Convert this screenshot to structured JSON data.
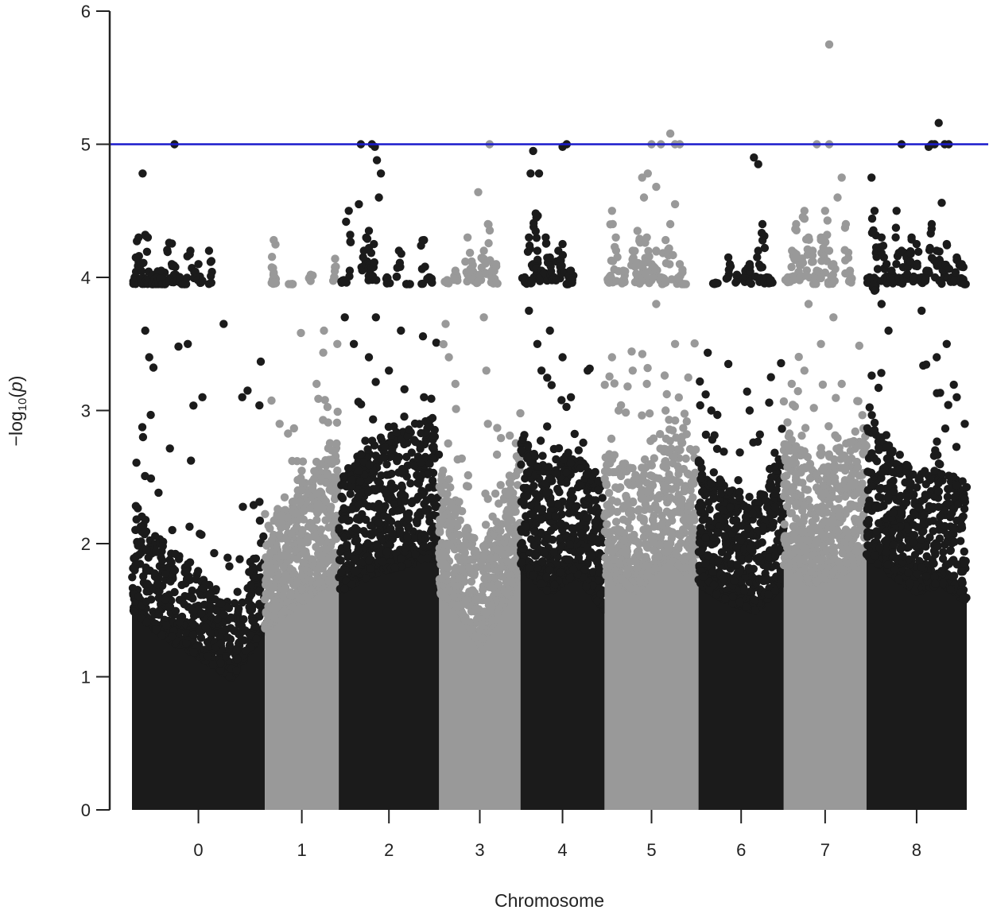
{
  "chart_data": {
    "type": "scatter",
    "subtype": "manhattan",
    "title": "",
    "xlabel": "Chromosome",
    "ylabel": "−log10(p)",
    "ylabel_parts": {
      "prefix": "−log",
      "subscript": "10",
      "open": "(",
      "var": "p",
      "close": ")"
    },
    "ylim": [
      0,
      6
    ],
    "yticks": [
      "0",
      "1",
      "2",
      "3",
      "4",
      "5",
      "6"
    ],
    "yticks_values": [
      0,
      1,
      2,
      3,
      4,
      5,
      6
    ],
    "threshold": {
      "value": 5,
      "color": "#1a1acc"
    },
    "grid": false,
    "legend": "none",
    "colors": {
      "dark": "#1b1b1b",
      "light": "#999999"
    },
    "chromosomes": [
      {
        "label": "0",
        "color": "dark",
        "pos": [
          0,
          1.06
        ],
        "base": [
          2.2,
          1.9,
          1.7,
          1.45,
          2.0
        ],
        "top": [
          [
            0.02,
            4.0
          ],
          [
            0.05,
            4.3
          ],
          [
            0.07,
            4.1
          ],
          [
            0.1,
            4.32
          ],
          [
            0.12,
            3.96
          ],
          [
            0.15,
            4.02
          ],
          [
            0.18,
            3.95
          ],
          [
            0.2,
            4.0
          ],
          [
            0.22,
            4.05
          ],
          [
            0.25,
            3.95
          ],
          [
            0.28,
            4.26
          ],
          [
            0.3,
            4.1
          ],
          [
            0.33,
            4.02
          ],
          [
            0.36,
            4.0
          ],
          [
            0.4,
            3.95
          ],
          [
            0.44,
            4.2
          ],
          [
            0.5,
            4.1
          ],
          [
            0.58,
            4.2
          ],
          [
            0.08,
            4.78
          ],
          [
            0.1,
            3.6
          ],
          [
            0.13,
            3.4
          ],
          [
            0.32,
            5.0
          ],
          [
            0.35,
            3.48
          ],
          [
            0.42,
            3.5
          ],
          [
            0.53,
            3.1
          ],
          [
            0.69,
            3.65
          ],
          [
            0.83,
            3.1
          ],
          [
            0.87,
            3.15
          ]
        ]
      },
      {
        "label": "1",
        "color": "light",
        "pos": [
          1.06,
          1.65
        ],
        "base": [
          2.0,
          2.2,
          2.4,
          2.6
        ],
        "top": [
          [
            0.12,
            4.28
          ],
          [
            0.12,
            4.02
          ],
          [
            0.12,
            3.96
          ],
          [
            0.35,
            3.95
          ],
          [
            0.62,
            4.02
          ],
          [
            0.8,
            3.6
          ],
          [
            0.95,
            4.14
          ],
          [
            0.98,
            3.5
          ],
          [
            0.2,
            2.9
          ],
          [
            0.7,
            3.2
          ]
        ]
      },
      {
        "label": "2",
        "color": "dark",
        "pos": [
          1.65,
          2.45
        ],
        "base": [
          2.4,
          2.6,
          2.7,
          2.8
        ],
        "top": [
          [
            0.05,
            3.98
          ],
          [
            0.1,
            4.5
          ],
          [
            0.2,
            4.55
          ],
          [
            0.25,
            4.2
          ],
          [
            0.3,
            4.35
          ],
          [
            0.32,
            4.1
          ],
          [
            0.35,
            4.25
          ],
          [
            0.38,
            4.88
          ],
          [
            0.4,
            4.6
          ],
          [
            0.42,
            4.78
          ],
          [
            0.22,
            5.0
          ],
          [
            0.33,
            5.0
          ],
          [
            0.36,
            4.98
          ],
          [
            0.48,
            4.0
          ],
          [
            0.6,
            4.2
          ],
          [
            0.7,
            3.95
          ],
          [
            0.85,
            4.28
          ],
          [
            0.9,
            4.0
          ],
          [
            0.06,
            3.7
          ],
          [
            0.15,
            3.5
          ],
          [
            0.3,
            3.4
          ],
          [
            0.37,
            3.7
          ],
          [
            0.5,
            3.3
          ],
          [
            0.62,
            3.6
          ],
          [
            0.85,
            3.1
          ]
        ]
      },
      {
        "label": "3",
        "color": "light",
        "pos": [
          2.45,
          3.1
        ],
        "base": [
          2.4,
          2.2,
          1.8,
          2.2,
          2.6
        ],
        "top": [
          [
            0.1,
            3.98
          ],
          [
            0.2,
            4.05
          ],
          [
            0.35,
            4.3
          ],
          [
            0.4,
            4.12
          ],
          [
            0.45,
            4.0
          ],
          [
            0.5,
            4.02
          ],
          [
            0.55,
            4.2
          ],
          [
            0.6,
            4.4
          ],
          [
            0.65,
            4.05
          ],
          [
            0.7,
            4.1
          ],
          [
            0.48,
            4.64
          ],
          [
            0.62,
            5.0
          ],
          [
            0.08,
            3.65
          ],
          [
            0.12,
            3.4
          ],
          [
            0.55,
            3.7
          ],
          [
            0.58,
            3.3
          ],
          [
            0.6,
            2.9
          ],
          [
            0.2,
            3.2
          ]
        ]
      },
      {
        "label": "4",
        "color": "dark",
        "pos": [
          3.1,
          3.77
        ],
        "base": [
          2.7,
          2.4,
          2.6,
          2.2
        ],
        "top": [
          [
            0.05,
            4.0
          ],
          [
            0.1,
            4.3
          ],
          [
            0.15,
            4.1
          ],
          [
            0.18,
            4.48
          ],
          [
            0.2,
            4.2
          ],
          [
            0.25,
            4.05
          ],
          [
            0.3,
            4.3
          ],
          [
            0.35,
            4.15
          ],
          [
            0.4,
            4.0
          ],
          [
            0.45,
            4.2
          ],
          [
            0.5,
            4.25
          ],
          [
            0.55,
            3.95
          ],
          [
            0.6,
            4.05
          ],
          [
            0.15,
            4.95
          ],
          [
            0.12,
            4.78
          ],
          [
            0.22,
            4.78
          ],
          [
            0.5,
            4.98
          ],
          [
            0.55,
            5.0
          ],
          [
            0.1,
            3.75
          ],
          [
            0.2,
            3.5
          ],
          [
            0.25,
            3.3
          ],
          [
            0.35,
            3.6
          ],
          [
            0.5,
            3.4
          ],
          [
            0.6,
            3.1
          ],
          [
            0.8,
            3.3
          ]
        ]
      },
      {
        "label": "5",
        "color": "light",
        "pos": [
          3.77,
          4.52
        ],
        "base": [
          2.6,
          2.4,
          2.8,
          2.5
        ],
        "top": [
          [
            0.05,
            4.0
          ],
          [
            0.08,
            4.5
          ],
          [
            0.12,
            4.3
          ],
          [
            0.2,
            4.05
          ],
          [
            0.3,
            4.2
          ],
          [
            0.35,
            4.35
          ],
          [
            0.38,
            4.02
          ],
          [
            0.4,
            4.1
          ],
          [
            0.42,
            4.6
          ],
          [
            0.45,
            4.3
          ],
          [
            0.5,
            4.1
          ],
          [
            0.55,
            4.2
          ],
          [
            0.6,
            4.0
          ],
          [
            0.65,
            4.28
          ],
          [
            0.7,
            4.4
          ],
          [
            0.75,
            4.55
          ],
          [
            0.8,
            4.1
          ],
          [
            0.85,
            3.95
          ],
          [
            0.4,
            4.75
          ],
          [
            0.46,
            4.78
          ],
          [
            0.55,
            4.68
          ],
          [
            0.5,
            5.0
          ],
          [
            0.6,
            5.0
          ],
          [
            0.7,
            5.08
          ],
          [
            0.75,
            5.0
          ],
          [
            0.8,
            5.0
          ],
          [
            0.08,
            3.4
          ],
          [
            0.15,
            3.0
          ],
          [
            0.3,
            3.3
          ],
          [
            0.45,
            3.2
          ],
          [
            0.55,
            3.8
          ],
          [
            0.65,
            3.0
          ],
          [
            0.75,
            3.5
          ]
        ]
      },
      {
        "label": "6",
        "color": "dark",
        "pos": [
          4.52,
          5.2
        ],
        "base": [
          2.5,
          2.3,
          2.2,
          2.5
        ],
        "top": [
          [
            0.2,
            3.96
          ],
          [
            0.35,
            4.15
          ],
          [
            0.45,
            4.02
          ],
          [
            0.55,
            4.05
          ],
          [
            0.6,
            4.1
          ],
          [
            0.7,
            4.2
          ],
          [
            0.75,
            4.4
          ],
          [
            0.8,
            4.0
          ],
          [
            0.85,
            3.98
          ],
          [
            0.65,
            4.9
          ],
          [
            0.7,
            4.85
          ],
          [
            0.35,
            3.35
          ],
          [
            0.85,
            3.25
          ],
          [
            0.15,
            3.0
          ],
          [
            0.6,
            3.0
          ]
        ]
      },
      {
        "label": "7",
        "color": "light",
        "pos": [
          5.2,
          5.86
        ],
        "base": [
          2.7,
          2.5,
          2.6,
          2.8
        ],
        "top": [
          [
            0.05,
            4.0
          ],
          [
            0.1,
            4.2
          ],
          [
            0.15,
            4.4
          ],
          [
            0.2,
            4.1
          ],
          [
            0.25,
            4.5
          ],
          [
            0.3,
            4.3
          ],
          [
            0.35,
            4.2
          ],
          [
            0.4,
            4.05
          ],
          [
            0.45,
            4.3
          ],
          [
            0.5,
            4.5
          ],
          [
            0.55,
            4.2
          ],
          [
            0.6,
            4.1
          ],
          [
            0.65,
            4.6
          ],
          [
            0.7,
            4.75
          ],
          [
            0.75,
            4.4
          ],
          [
            0.8,
            4.05
          ],
          [
            0.4,
            5.0
          ],
          [
            0.55,
            5.0
          ],
          [
            0.55,
            5.75
          ],
          [
            0.3,
            3.8
          ],
          [
            0.45,
            3.5
          ],
          [
            0.6,
            3.7
          ],
          [
            0.7,
            3.2
          ],
          [
            0.25,
            3.3
          ]
        ]
      },
      {
        "label": "8",
        "color": "dark",
        "pos": [
          5.86,
          6.66
        ],
        "base": [
          2.8,
          2.6,
          2.4,
          2.5,
          2.3
        ],
        "top": [
          [
            0.03,
            4.0
          ],
          [
            0.05,
            4.75
          ],
          [
            0.08,
            4.5
          ],
          [
            0.1,
            4.2
          ],
          [
            0.15,
            4.3
          ],
          [
            0.2,
            4.1
          ],
          [
            0.25,
            4.05
          ],
          [
            0.3,
            4.5
          ],
          [
            0.35,
            4.2
          ],
          [
            0.4,
            4.15
          ],
          [
            0.45,
            4.3
          ],
          [
            0.5,
            4.25
          ],
          [
            0.55,
            4.0
          ],
          [
            0.6,
            4.05
          ],
          [
            0.65,
            4.4
          ],
          [
            0.7,
            4.2
          ],
          [
            0.75,
            4.1
          ],
          [
            0.8,
            4.25
          ],
          [
            0.85,
            4.0
          ],
          [
            0.9,
            4.15
          ],
          [
            0.95,
            4.1
          ],
          [
            0.98,
            3.95
          ],
          [
            0.08,
            3.9
          ],
          [
            0.15,
            3.8
          ],
          [
            0.22,
            3.6
          ],
          [
            0.55,
            3.75
          ],
          [
            0.7,
            3.4
          ],
          [
            0.8,
            3.5
          ],
          [
            0.9,
            3.1
          ],
          [
            0.98,
            2.9
          ],
          [
            0.35,
            5.0
          ],
          [
            0.62,
            4.98
          ],
          [
            0.65,
            5.0
          ],
          [
            0.68,
            5.0
          ],
          [
            0.72,
            5.16
          ],
          [
            0.75,
            4.56
          ],
          [
            0.78,
            5.0
          ],
          [
            0.82,
            5.0
          ]
        ]
      }
    ]
  }
}
